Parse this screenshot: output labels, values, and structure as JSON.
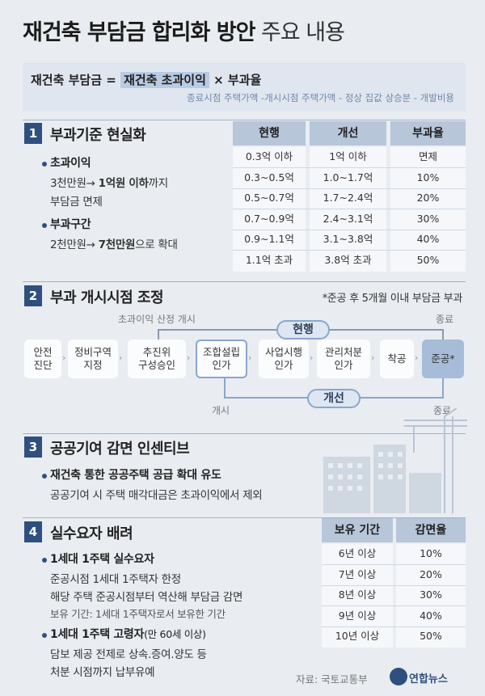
{
  "title": {
    "main": "재건축 부담금 합리화 방안",
    "suffix": "주요 내용"
  },
  "formula": {
    "lhs": "재건축 부담금 =",
    "highlight": "재건축 초과이익",
    "rhs": "× 부과율",
    "sub": "종료시점 주택가액 -개시시점 주택가액 - 정상 집값 상승분 - 개발비용"
  },
  "section1": {
    "num": "1",
    "title": "부과기준 현실화",
    "b1_title": "초과이익",
    "b1_line1_pre": "3천만원→ ",
    "b1_line1_bold": "1억원 이하",
    "b1_line1_post": "까지",
    "b1_line2": "부담금 면제",
    "b2_title": "부과구간",
    "b2_line1_pre": "2천만원→ ",
    "b2_line1_bold": "7천만원",
    "b2_line1_post": "으로 확대",
    "table": {
      "headers": [
        "현행",
        "개선",
        "부과율"
      ],
      "rows": [
        [
          "0.3억 이하",
          "1억 이하",
          "면제"
        ],
        [
          "0.3~0.5억",
          "1.0~1.7억",
          "10%"
        ],
        [
          "0.5~0.7억",
          "1.7~2.4억",
          "20%"
        ],
        [
          "0.7~0.9억",
          "2.4~3.1억",
          "30%"
        ],
        [
          "0.9~1.1억",
          "3.1~3.8억",
          "40%"
        ],
        [
          "1.1억 초과",
          "3.8억 초과",
          "50%"
        ]
      ]
    }
  },
  "section2": {
    "num": "2",
    "title": "부과 개시시점 조정",
    "note": "*준공 후 5개월 이내 부담금 부과",
    "label_start_top": "초과이익 산정 개시",
    "label_end_top": "종료",
    "pill_current": "현행",
    "pill_improved": "개선",
    "label_start_bottom": "개시",
    "label_end_bottom": "종료",
    "steps": [
      [
        "안전",
        "진단"
      ],
      [
        "정비구역",
        "지정"
      ],
      [
        "추진위",
        "구성승인"
      ],
      [
        "조합설립",
        "인가"
      ],
      [
        "사업시행",
        "인가"
      ],
      [
        "관리처분",
        "인가"
      ],
      [
        "착공",
        ""
      ],
      [
        "준공*",
        ""
      ]
    ]
  },
  "section3": {
    "num": "3",
    "title": "공공기여 감면 인센티브",
    "b1_title": "재건축 통한 공공주택 공급 확대 유도",
    "b1_line": "공공기여 시 주택 매각대금은 초과이익에서 제외"
  },
  "section4": {
    "num": "4",
    "title": "실수요자 배려",
    "b1_title": "1세대 1주택 실수요자",
    "b1_line1": "준공시점 1세대 1주택자 한정",
    "b1_line2": "해당 주택 준공시점부터 역산해 부담금 감면",
    "b1_line3": "보유 기간: 1세대 1주택자로서 보유한 기간",
    "b2_title": "1세대 1주택 고령자",
    "b2_title_suffix": "(만 60세 이상)",
    "b2_line1": "담보 제공 전제로 상속.증여.양도 등",
    "b2_line2": "처분 시점까지 납부유예",
    "table": {
      "headers": [
        "보유 기간",
        "감면율"
      ],
      "rows": [
        [
          "6년 이상",
          "10%"
        ],
        [
          "7년 이상",
          "20%"
        ],
        [
          "8년 이상",
          "30%"
        ],
        [
          "9년 이상",
          "40%"
        ],
        [
          "10년 이상",
          "50%"
        ]
      ]
    }
  },
  "footer": {
    "source": "자료: 국토교통부",
    "logo": "연합뉴스"
  },
  "colors": {
    "accent": "#2f4f7f",
    "highlight": "#b8cbe3",
    "background": "#e9edf2"
  }
}
